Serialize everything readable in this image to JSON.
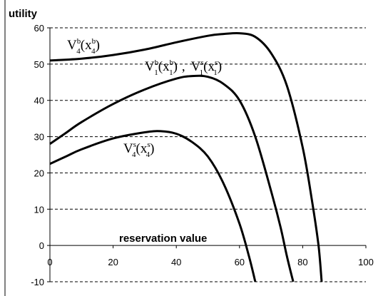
{
  "chart_data": {
    "type": "line",
    "ylabel": "utility",
    "xlabel": "reservation value",
    "xlim": [
      0,
      100
    ],
    "ylim": [
      -10,
      60
    ],
    "x_ticks": [
      0,
      20,
      40,
      60,
      80,
      100
    ],
    "y_ticks": [
      -10,
      0,
      10,
      20,
      30,
      40,
      50,
      60
    ],
    "grid": "horizontal dashed",
    "legend": "none",
    "series": [
      {
        "label": {
          "base": "V",
          "sub": "4",
          "sup": "b",
          "arg_base": "x",
          "arg_sub": "4",
          "arg_sup": "b"
        },
        "x": [
          0,
          10,
          20,
          30,
          40,
          50,
          55,
          60,
          65,
          70,
          75,
          80,
          83,
          85,
          86
        ],
        "y": [
          51,
          51.5,
          52.5,
          54,
          56,
          57.8,
          58.3,
          58.5,
          57.5,
          53,
          44,
          27,
          12,
          0,
          -10
        ]
      },
      {
        "label": {
          "base": "V",
          "sub": "1",
          "sup": "b",
          "arg_base": "x",
          "arg_sub": "1",
          "arg_sup": "b",
          "sep": ",",
          "base2": "V",
          "sub2": "1",
          "sup2": "s",
          "arg_base2": "x",
          "arg_sub2": "1",
          "arg_sup2": "s"
        },
        "x": [
          0,
          5,
          10,
          20,
          30,
          40,
          45,
          50,
          55,
          60,
          65,
          70,
          73,
          75,
          77
        ],
        "y": [
          28,
          31,
          34,
          39,
          43,
          46,
          46.7,
          46.5,
          44.5,
          40,
          30,
          15,
          5,
          -3,
          -10
        ]
      },
      {
        "label": {
          "base": "V",
          "sub": "4",
          "sup": "s",
          "arg_base": "x",
          "arg_sub": "4",
          "arg_sup": "s"
        },
        "x": [
          0,
          5,
          10,
          20,
          30,
          35,
          40,
          45,
          50,
          55,
          60,
          63,
          65
        ],
        "y": [
          22.5,
          24.5,
          26.5,
          29.5,
          31.2,
          31.5,
          30.8,
          28.5,
          24.5,
          17,
          6,
          -3,
          -10
        ]
      }
    ]
  }
}
